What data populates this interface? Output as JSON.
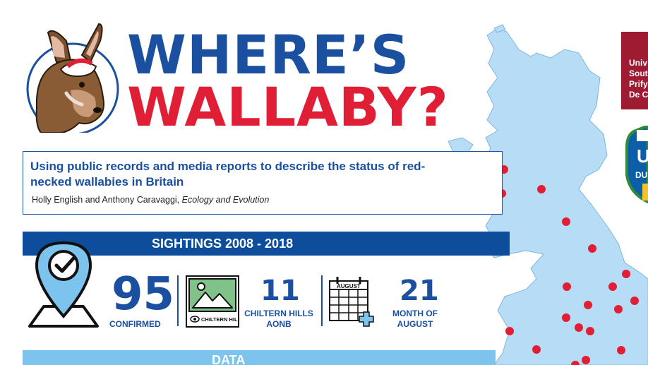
{
  "title": {
    "line1": "WHERE’S",
    "line2": "WALLABY?"
  },
  "paper": {
    "title": "Using public records and media reports to describe the status of red-necked wallabies in Britain",
    "authors": "Holly English and Anthony Caravaggi,",
    "journal": "Ecology and Evolution"
  },
  "sightings": {
    "banner": "SIGHTINGS 2008 - 2018",
    "confirmed": {
      "value": "95",
      "label": "CONFIRMED"
    },
    "chiltern": {
      "value": "11",
      "label_line1": "CHILTERN HILLS",
      "label_line2": "AONB",
      "icon_caption": "CHILTERN HILLS"
    },
    "august": {
      "value": "21",
      "label_line1": "MONTH OF",
      "label_line2": "AUGUST",
      "calendar_header": "AUGUST"
    }
  },
  "data_banner": "DATA",
  "partner_logo": {
    "text": "Univ\nSout\nPrify\nDe C",
    "crest_text_1": "U",
    "crest_text_2": "DU"
  },
  "colors": {
    "blue": "#1b4fa0",
    "red": "#e01f36",
    "map_fill": "#b7dcf5",
    "dot": "#e01f36",
    "banner": "#0d4d9c",
    "data_banner": "#7cc4ee",
    "logo_red": "#9e1b32"
  },
  "icons": [
    "wallaby-avatar",
    "location-check-icon",
    "landscape-icon",
    "calendar-plus-icon",
    "eye-icon"
  ]
}
